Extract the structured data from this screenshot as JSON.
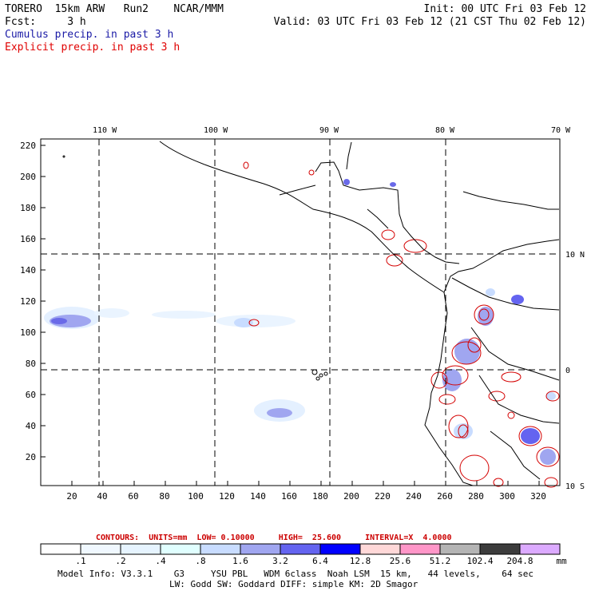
{
  "header": {
    "line1_left": "TORERO  15km ARW   Run2    NCAR/MMM",
    "line1_right": "Init: 00 UTC Fri 03 Feb 12",
    "line2_left": "Fcst:     3 h",
    "line2_right": "Valid: 03 UTC Fri 03 Feb 12 (21 CST Thu 02 Feb 12)",
    "line3": "Cumulus precip. in past 3 h",
    "line4": "Explicit precip. in past 3 h"
  },
  "map": {
    "top_lon_labels": [
      "110 W",
      "100 W",
      "90 W",
      "80 W",
      "70 W"
    ],
    "right_lat_labels": [
      "10 N",
      "0",
      "10 S"
    ],
    "y_ticks": [
      "220",
      "200",
      "180",
      "160",
      "140",
      "120",
      "100",
      "80",
      "60",
      "40",
      "20"
    ],
    "x_ticks": [
      "20",
      "40",
      "60",
      "80",
      "100",
      "120",
      "140",
      "160",
      "180",
      "200",
      "220",
      "240",
      "260",
      "280",
      "300",
      "320"
    ],
    "colors": {
      "land": "#000000",
      "cumulus": "#6a6ae8",
      "explicit": "#d40000",
      "grid": "#000000"
    }
  },
  "contours": {
    "text": "CONTOURS:  UNITS=mm  LOW= 0.10000     HIGH=  25.600     INTERVAL=X  4.0000"
  },
  "colorbar": {
    "labels": [
      ".1",
      ".2",
      ".4",
      ".8",
      "1.6",
      "3.2",
      "6.4",
      "12.8",
      "25.6",
      "51.2",
      "102.4",
      "204.8"
    ],
    "unit": "mm",
    "colors": [
      "#ffffff",
      "#f0f8ff",
      "#e6f4ff",
      "#e0ffff",
      "#c8dcff",
      "#a0a6f0",
      "#6464f0",
      "#0000ff",
      "#ffd8d8",
      "#ff96c8",
      "#b4b4b4",
      "#3c3c3c",
      "#dcaaff"
    ]
  },
  "footer": {
    "line1": "Model Info: V3.3.1    G3     YSU PBL   WDM 6class  Noah LSM  15 km,   44 levels,    64 sec",
    "line2": "LW: Godd SW: Goddard DIFF: simple KM: 2D Smagor"
  }
}
